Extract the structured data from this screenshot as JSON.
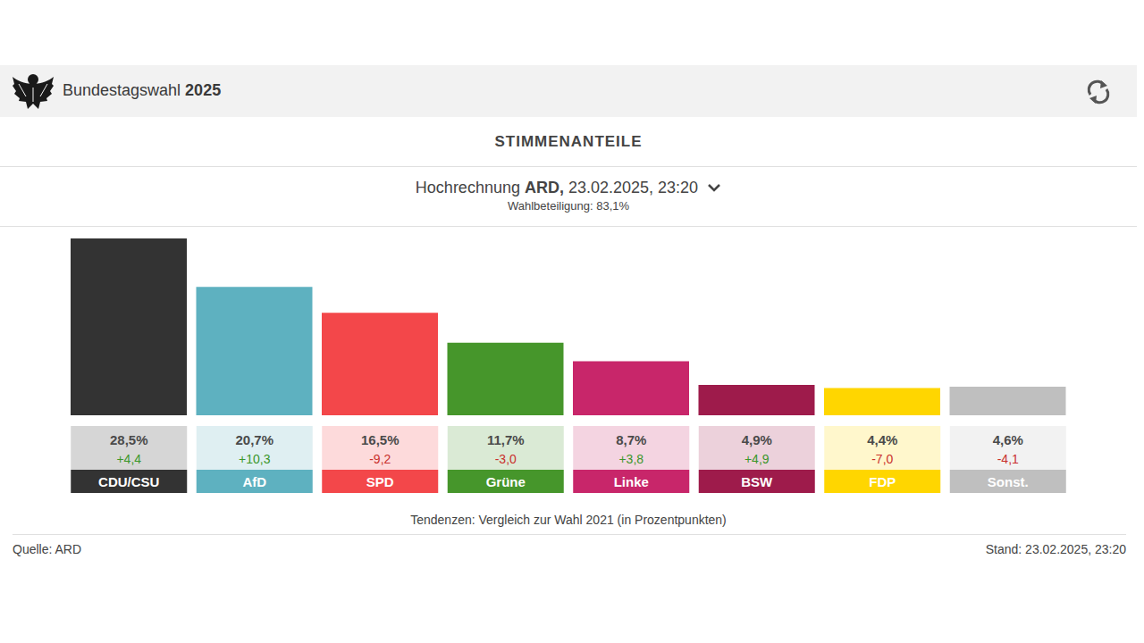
{
  "header": {
    "title": "Bundestagswahl",
    "year": "2025"
  },
  "section_title": "STIMMENANTEILE",
  "subtitle": {
    "prefix": "Hochrechnung",
    "source": "ARD,",
    "time": "23.02.2025, 23:20"
  },
  "turnout": "Wahlbeteiligung: 83,1%",
  "note": "Tendenzen: Vergleich zur Wahl 2021 (in Prozentpunkten)",
  "footer": {
    "source": "Quelle: ARD",
    "stand": "Stand: 23.02.2025, 23:20"
  },
  "chart_data": {
    "type": "bar",
    "categories": [
      "CDU/CSU",
      "AfD",
      "SPD",
      "Grüne",
      "Linke",
      "BSW",
      "FDP",
      "Sonst."
    ],
    "values": [
      28.5,
      20.7,
      16.5,
      11.7,
      8.7,
      4.9,
      4.4,
      4.6
    ],
    "value_labels": [
      "28,5%",
      "20,7%",
      "16,5%",
      "11,7%",
      "8,7%",
      "4,9%",
      "4,4%",
      "4,6%"
    ],
    "changes": [
      4.4,
      10.3,
      -9.2,
      -3.0,
      3.8,
      4.9,
      -7.0,
      -4.1
    ],
    "change_labels": [
      "+4,4",
      "+10,3",
      "-9,2",
      "-3,0",
      "+3,8",
      "+4,9",
      "-7,0",
      "-4,1"
    ],
    "colors": [
      "#333333",
      "#5eb1c0",
      "#f3474a",
      "#46962b",
      "#c8266a",
      "#9e1b4b",
      "#ffd600",
      "#bfbfbf"
    ],
    "ylim": [
      0,
      28.5
    ],
    "yticks": [],
    "grid": false,
    "data_labels": true,
    "tick_labels": false
  }
}
